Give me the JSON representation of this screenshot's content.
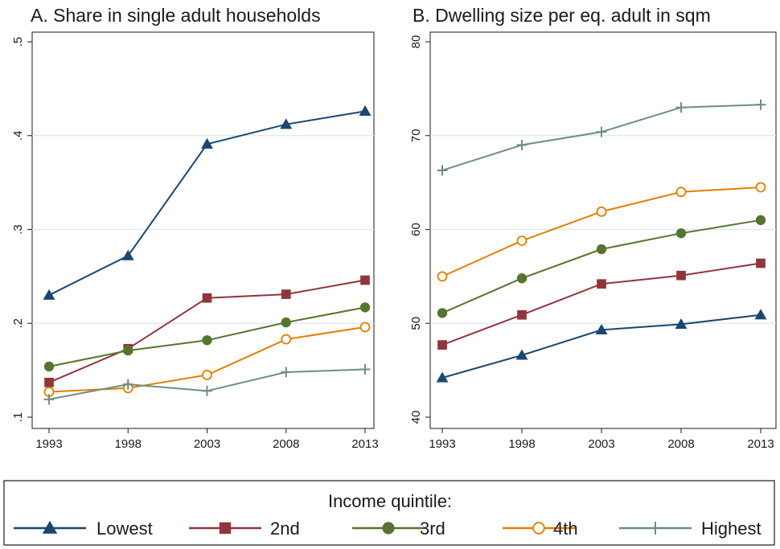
{
  "chart_data": [
    {
      "type": "line",
      "title": "A. Share in single adult households",
      "x": [
        1993,
        1998,
        2003,
        2008,
        2013
      ],
      "x_tick_labels": [
        "1993",
        "1998",
        "2003",
        "2008",
        "2013"
      ],
      "ylim": [
        0.1,
        0.5
      ],
      "y_ticks": [
        0.1,
        0.2,
        0.3,
        0.4,
        0.5
      ],
      "y_tick_labels": [
        ".1",
        ".2",
        ".3",
        ".4",
        ".5"
      ],
      "grid": true,
      "series": [
        {
          "name": "Lowest",
          "values": [
            0.23,
            0.272,
            0.391,
            0.412,
            0.426
          ]
        },
        {
          "name": "2nd",
          "values": [
            0.137,
            0.173,
            0.227,
            0.231,
            0.246
          ]
        },
        {
          "name": "3rd",
          "values": [
            0.154,
            0.171,
            0.182,
            0.201,
            0.217
          ]
        },
        {
          "name": "4th",
          "values": [
            0.127,
            0.131,
            0.145,
            0.183,
            0.196
          ]
        },
        {
          "name": "Highest",
          "values": [
            0.119,
            0.135,
            0.128,
            0.148,
            0.151
          ]
        }
      ]
    },
    {
      "type": "line",
      "title": "B. Dwelling size per eq. adult in sqm",
      "x": [
        1993,
        1998,
        2003,
        2008,
        2013
      ],
      "x_tick_labels": [
        "1993",
        "1998",
        "2003",
        "2008",
        "2013"
      ],
      "ylim": [
        40,
        80
      ],
      "y_ticks": [
        40,
        50,
        60,
        70,
        80
      ],
      "y_tick_labels": [
        "40",
        "50",
        "60",
        "70",
        "80"
      ],
      "grid": true,
      "series": [
        {
          "name": "Lowest",
          "values": [
            44.2,
            46.6,
            49.3,
            49.9,
            50.9
          ]
        },
        {
          "name": "2nd",
          "values": [
            47.7,
            50.9,
            54.2,
            55.1,
            56.4
          ]
        },
        {
          "name": "3rd",
          "values": [
            51.1,
            54.8,
            57.9,
            59.6,
            61.0
          ]
        },
        {
          "name": "4th",
          "values": [
            55.0,
            58.8,
            61.9,
            64.0,
            64.5
          ]
        },
        {
          "name": "Highest",
          "values": [
            66.3,
            69.0,
            70.4,
            73.0,
            73.3
          ]
        }
      ]
    }
  ],
  "legend": {
    "title": "Income quintile:",
    "placement": "bottom",
    "items": [
      {
        "label": "Lowest",
        "color": "#1a476f",
        "marker": "triangle-filled"
      },
      {
        "label": "2nd",
        "color": "#90353b",
        "marker": "square-filled"
      },
      {
        "label": "3rd",
        "color": "#55752f",
        "marker": "circle-filled"
      },
      {
        "label": "4th",
        "color": "#e37e00",
        "marker": "circle-hollow"
      },
      {
        "label": "Highest",
        "color": "#6e8e84",
        "marker": "plus"
      }
    ]
  }
}
